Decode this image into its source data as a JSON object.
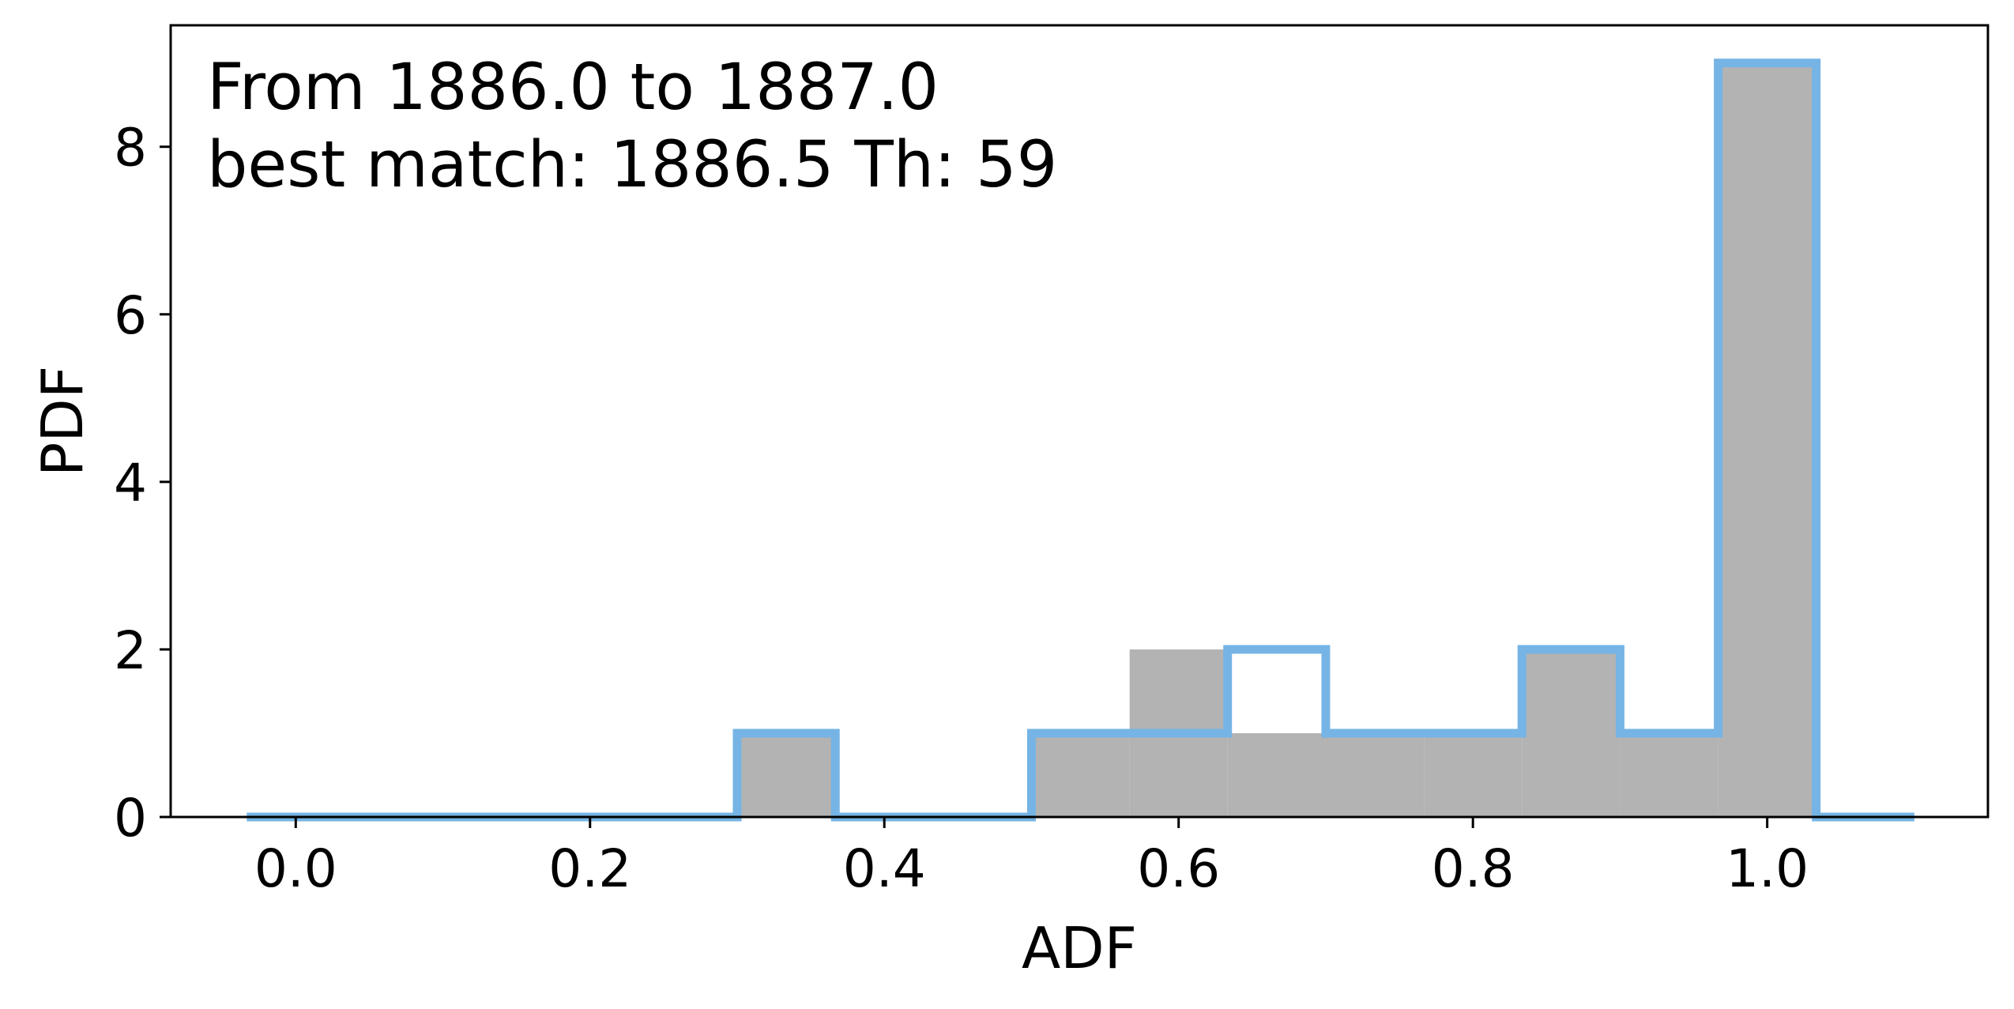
{
  "chart_data": {
    "type": "histogram",
    "title": "",
    "xlabel": "ADF",
    "ylabel": "PDF",
    "xlim": [
      -0.085,
      1.15
    ],
    "ylim": [
      0,
      9.45
    ],
    "xticks": [
      0.0,
      0.2,
      0.4,
      0.6,
      0.8,
      1.0
    ],
    "xtick_labels": [
      "0.0",
      "0.2",
      "0.4",
      "0.6",
      "0.8",
      "1.0"
    ],
    "yticks": [
      0,
      2,
      4,
      6,
      8
    ],
    "ytick_labels": [
      "0",
      "2",
      "4",
      "6",
      "8"
    ],
    "grid": false,
    "bin_edges": [
      -0.0333,
      0.0333,
      0.1,
      0.1667,
      0.2333,
      0.3,
      0.3667,
      0.4333,
      0.5,
      0.5667,
      0.6333,
      0.7,
      0.7667,
      0.8333,
      0.9,
      0.9667,
      1.0333,
      1.1
    ],
    "series": [
      {
        "style": "filled",
        "color": "#b3b3b3",
        "values": [
          0,
          0,
          0,
          0,
          0,
          1,
          0,
          0,
          1,
          2,
          1,
          1,
          1,
          2,
          1,
          9,
          0
        ]
      },
      {
        "style": "step",
        "color": "#75b4e5",
        "values": [
          0,
          0,
          0,
          0,
          0,
          1,
          0,
          0,
          1,
          1,
          2,
          1,
          1,
          2,
          1,
          9,
          0
        ]
      }
    ],
    "annotations": [
      "From 1886.0 to 1887.0",
      "best match: 1886.5  Th: 59"
    ]
  }
}
